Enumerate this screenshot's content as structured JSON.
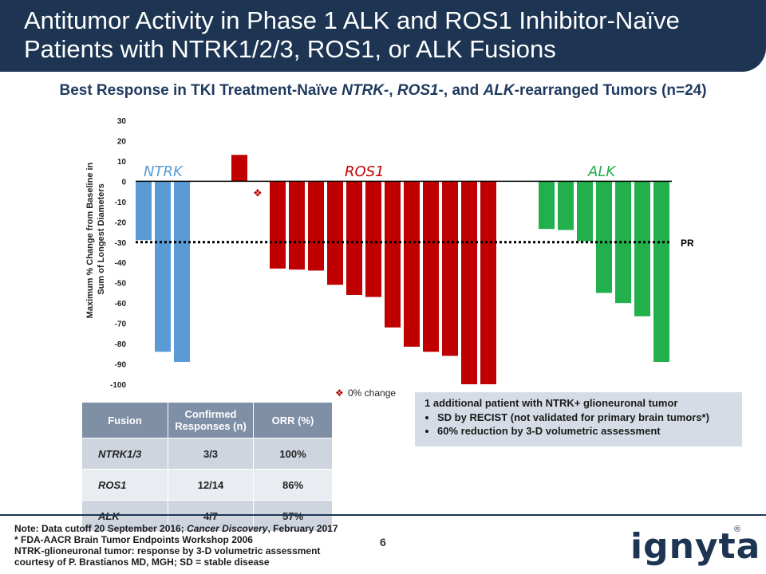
{
  "slide": {
    "title_line1": "Antitumor Activity in Phase 1 ALK and ROS1 Inhibitor-Naïve",
    "title_line2": "Patients with NTRK1/2/3, ROS1, or ALK Fusions",
    "subtitle_p1": "Best Response in TKI Treatment-Naïve ",
    "subtitle_ntrk": "NTRK",
    "subtitle_p2": "-, ",
    "subtitle_ros1": "ROS1",
    "subtitle_p3": "-, and ",
    "subtitle_alk": "ALK",
    "subtitle_p4": "-rearranged Tumors (n=24)",
    "page_number": "6",
    "logo_text": "ignyta",
    "logo_mark": "®"
  },
  "chart_data": {
    "type": "bar",
    "ylabel_line1": "Maximum % Change from Baseline in",
    "ylabel_line2": "Sum of Longest Diameters",
    "ylim": [
      -100,
      30
    ],
    "yticks": [
      30,
      20,
      10,
      0,
      -10,
      -20,
      -30,
      -40,
      -50,
      -60,
      -70,
      -80,
      -90,
      -100
    ],
    "reference_line": {
      "value": -30,
      "label": "PR"
    },
    "zero_change_marker": "❖",
    "zero_change_legend": "0% change",
    "groups": [
      {
        "name": "NTRK",
        "color": "#5b9bd5",
        "label_color": "#5b9bd5",
        "values": [
          -29,
          -84,
          -89
        ]
      },
      {
        "name": "ROS1",
        "color": "#c00000",
        "label_color": "#c00000",
        "values": [
          13,
          0,
          -43,
          -43.5,
          -44,
          -51,
          -56,
          -57,
          -72,
          -81.5,
          -84,
          -86,
          -100,
          -100
        ]
      },
      {
        "name": "ALK",
        "color": "#21b04b",
        "label_color": "#21b04b",
        "values": [
          -23.5,
          -24,
          -29.5,
          -55,
          -60,
          -66.5,
          -89
        ]
      }
    ]
  },
  "table": {
    "headers": [
      "Fusion",
      "Confirmed Responses (n)",
      "ORR (%)"
    ],
    "rows": [
      [
        "NTRK1/3",
        "3/3",
        "100%"
      ],
      [
        "ROS1",
        "12/14",
        "86%"
      ],
      [
        "ALK",
        "4/7",
        "57%"
      ]
    ]
  },
  "note_box": {
    "heading": "1 additional patient with NTRK+ glioneuronal tumor",
    "bullets": [
      "SD by RECIST (not validated for primary brain tumors*)",
      "60% reduction by 3-D volumetric assessment"
    ]
  },
  "footnote": {
    "line1_a": "Note: Data cutoff 20 September 2016; ",
    "line1_b": "Cancer Discovery",
    "line1_c": ", February 2017",
    "line2": "* FDA-AACR Brain Tumor Endpoints Workshop 2006",
    "line3": "NTRK-glioneuronal tumor: response by 3-D volumetric assessment",
    "line4": "courtesy of P. Brastianos MD, MGH; SD = stable disease"
  }
}
